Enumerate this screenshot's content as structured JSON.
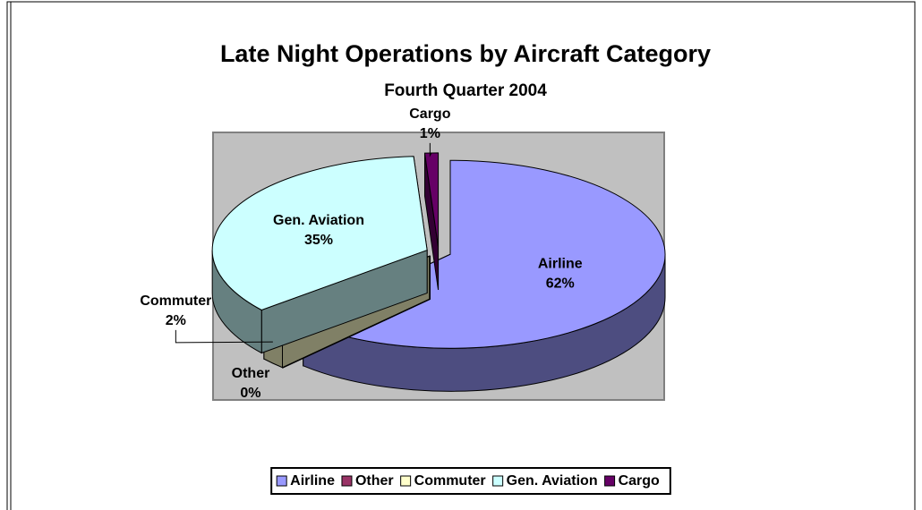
{
  "chart_data": {
    "type": "pie",
    "title": "Late Night Operations by Aircraft Category",
    "subtitle": "Fourth Quarter 2004",
    "categories": [
      "Airline",
      "Other",
      "Commuter",
      "Gen. Aviation",
      "Cargo"
    ],
    "values": [
      62,
      0,
      2,
      35,
      1
    ],
    "value_labels": [
      "62%",
      "0%",
      "2%",
      "35%",
      "1%"
    ],
    "colors": [
      "#9999ff",
      "#993366",
      "#ffffcc",
      "#ccffff",
      "#660066"
    ],
    "legend": "bottom",
    "3d": true
  }
}
